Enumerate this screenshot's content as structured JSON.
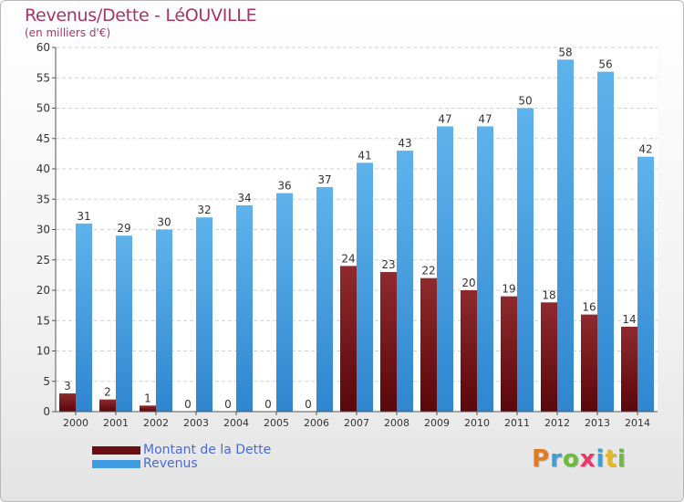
{
  "header": {
    "title": "Revenus/Dette - LéOUVILLE",
    "subtitle": "(en milliers d'€)"
  },
  "legend": {
    "items": [
      {
        "label": "Montant de la Dette",
        "color": "#6b0d12"
      },
      {
        "label": "Revenus",
        "color": "#3f9ce0"
      }
    ]
  },
  "logo": {
    "text": "Proxiti",
    "letters": [
      {
        "char": "P",
        "color": "#e87a1e"
      },
      {
        "char": "r",
        "color": "#3aa0d8"
      },
      {
        "char": "o",
        "color": "#6cbb3c"
      },
      {
        "char": "x",
        "color": "#e83a6a"
      },
      {
        "char": "i",
        "color": "#3aa0d8"
      },
      {
        "char": "t",
        "color": "#e8b81e"
      },
      {
        "char": "i",
        "color": "#6cbb3c"
      }
    ]
  },
  "chart_data": {
    "type": "bar",
    "title": "Revenus/Dette - LéOUVILLE",
    "subtitle": "(en milliers d'€)",
    "categories": [
      "2000",
      "2001",
      "2002",
      "2003",
      "2004",
      "2005",
      "2006",
      "2007",
      "2008",
      "2009",
      "2010",
      "2011",
      "2012",
      "2013",
      "2014"
    ],
    "series": [
      {
        "name": "Montant de la Dette",
        "color": "#6b0d12",
        "values": [
          3,
          2,
          1,
          0,
          0,
          0,
          0,
          24,
          23,
          22,
          20,
          19,
          18,
          16,
          14
        ]
      },
      {
        "name": "Revenus",
        "color": "#3f9ce0",
        "values": [
          31,
          29,
          30,
          32,
          34,
          36,
          37,
          41,
          43,
          47,
          47,
          50,
          58,
          56,
          42
        ]
      }
    ],
    "ylim": [
      0,
      60
    ],
    "yticks": [
      0,
      5,
      10,
      15,
      20,
      25,
      30,
      35,
      40,
      45,
      50,
      55,
      60
    ],
    "grid": true,
    "legend_position": "bottom-left"
  }
}
